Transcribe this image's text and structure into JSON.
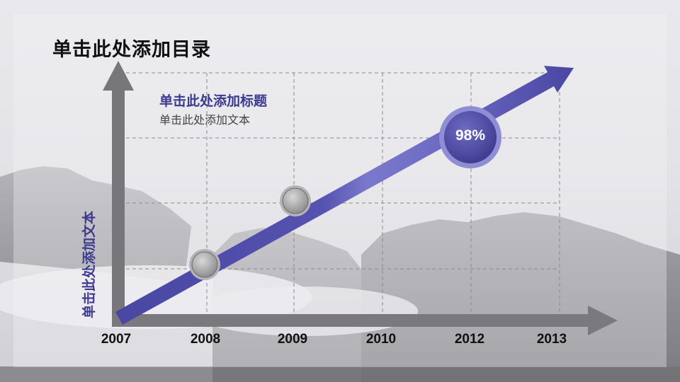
{
  "slide": {
    "title": "单击此处添加目录",
    "subtitle": "单击此处添加标题",
    "subtext": "单击此处添加文本",
    "y_axis_label": "单击此处添加文本"
  },
  "chart_data": {
    "type": "line",
    "categories": [
      "2007",
      "2008",
      "2009",
      "2010",
      "2012",
      "2013"
    ],
    "callout": "98%",
    "colors": {
      "accent": "#4a47a3",
      "accent_light": "#7b79cc",
      "axis": "#777777"
    }
  }
}
